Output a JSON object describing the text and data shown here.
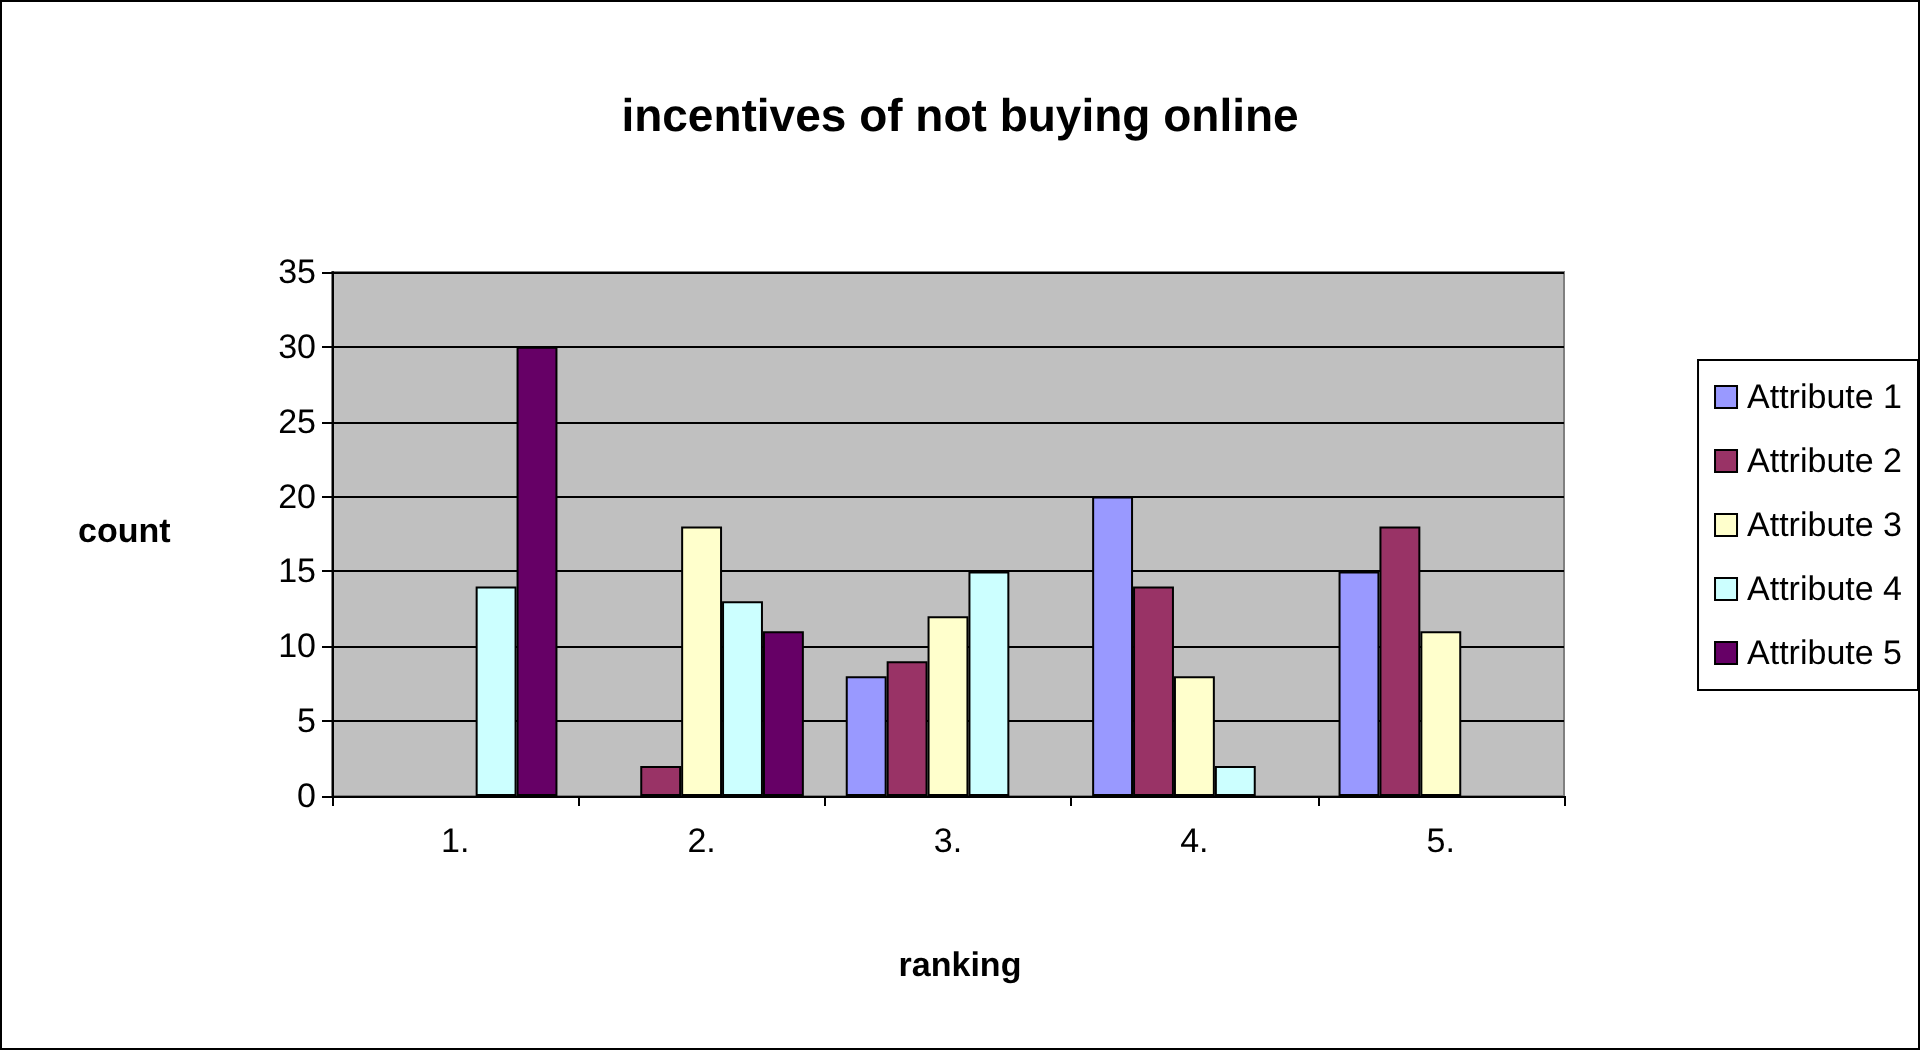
{
  "chart_data": {
    "type": "bar",
    "title": "incentives of not buying online",
    "xlabel": "ranking",
    "ylabel": "count",
    "categories": [
      "1.",
      "2.",
      "3.",
      "4.",
      "5."
    ],
    "series": [
      {
        "name": "Attribute 1",
        "color": "#9999ff",
        "values": [
          null,
          null,
          8,
          20,
          15
        ]
      },
      {
        "name": "Attribute 2",
        "color": "#993366",
        "values": [
          null,
          2,
          9,
          14,
          18
        ]
      },
      {
        "name": "Attribute 3",
        "color": "#ffffcc",
        "values": [
          null,
          18,
          12,
          8,
          11
        ]
      },
      {
        "name": "Attribute 4",
        "color": "#ccffff",
        "values": [
          14,
          13,
          15,
          2,
          null
        ]
      },
      {
        "name": "Attribute 5",
        "color": "#660066",
        "values": [
          30,
          11,
          null,
          null,
          null
        ]
      }
    ],
    "ylim": [
      0,
      35
    ],
    "yticks": [
      0,
      5,
      10,
      15,
      20,
      25,
      30,
      35
    ],
    "grid": "y",
    "legend": "right"
  }
}
